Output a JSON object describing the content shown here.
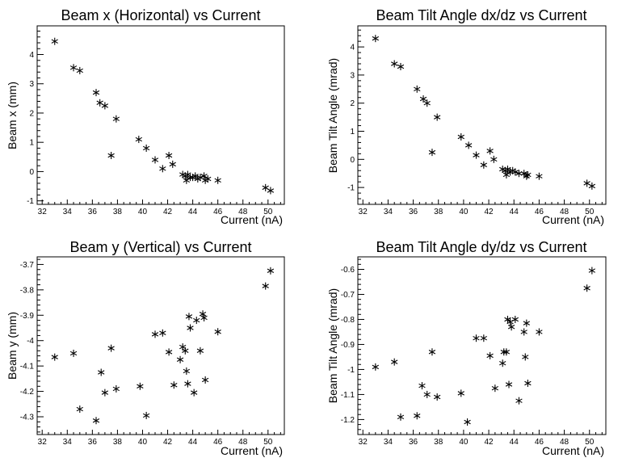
{
  "chart_data": [
    {
      "type": "scatter",
      "title": "Beam x (Horizontal) vs Current",
      "xlabel": "Current (nA)",
      "ylabel": "Beam x (mm)",
      "xlim": [
        31.6,
        51.3
      ],
      "ylim": [
        -1.12,
        4.98
      ],
      "xticks": [
        32,
        34,
        36,
        38,
        40,
        42,
        44,
        46,
        48,
        50
      ],
      "yticks": [
        -1,
        0,
        1,
        2,
        3,
        4
      ],
      "x": [
        33.0,
        34.5,
        35.0,
        36.3,
        36.6,
        37.0,
        37.5,
        37.9,
        39.7,
        40.3,
        41.0,
        41.6,
        42.1,
        42.4,
        43.2,
        43.4,
        43.5,
        43.6,
        43.8,
        44.0,
        44.2,
        44.4,
        44.6,
        44.9,
        45.0,
        45.2,
        46.0,
        49.8,
        50.2
      ],
      "y": [
        4.45,
        3.55,
        3.45,
        2.7,
        2.35,
        2.25,
        0.55,
        1.8,
        1.1,
        0.8,
        0.4,
        0.1,
        0.55,
        0.25,
        -0.1,
        -0.15,
        -0.3,
        -0.1,
        -0.2,
        -0.2,
        -0.15,
        -0.25,
        -0.2,
        -0.15,
        -0.3,
        -0.25,
        -0.3,
        -0.55,
        -0.65
      ]
    },
    {
      "type": "scatter",
      "title": "Beam Tilt Angle dx/dz vs Current",
      "xlabel": "Current (nA)",
      "ylabel": "Beam Tilt Angle (mrad)",
      "xlim": [
        31.6,
        51.3
      ],
      "ylim": [
        -1.6,
        4.75
      ],
      "xticks": [
        32,
        34,
        36,
        38,
        40,
        42,
        44,
        46,
        48,
        50
      ],
      "yticks": [
        -1,
        0,
        1,
        2,
        3,
        4
      ],
      "x": [
        33.0,
        34.5,
        35.0,
        36.3,
        36.8,
        37.1,
        37.5,
        37.9,
        39.8,
        40.4,
        41.0,
        41.6,
        42.1,
        42.4,
        43.1,
        43.3,
        43.4,
        43.5,
        43.7,
        43.9,
        44.1,
        44.4,
        44.8,
        45.0,
        45.1,
        46.0,
        49.8,
        50.2
      ],
      "y": [
        4.3,
        3.4,
        3.3,
        2.5,
        2.15,
        2.0,
        0.25,
        1.5,
        0.8,
        0.5,
        0.15,
        -0.2,
        0.3,
        0.0,
        -0.35,
        -0.4,
        -0.55,
        -0.35,
        -0.45,
        -0.4,
        -0.45,
        -0.5,
        -0.5,
        -0.6,
        -0.55,
        -0.6,
        -0.85,
        -0.95
      ]
    },
    {
      "type": "scatter",
      "title": "Beam y (Vertical) vs Current",
      "xlabel": "Current (nA)",
      "ylabel": "Beam y (mm)",
      "xlim": [
        31.6,
        51.3
      ],
      "ylim": [
        -4.37,
        -3.67
      ],
      "xticks": [
        32,
        34,
        36,
        38,
        40,
        42,
        44,
        46,
        48,
        50
      ],
      "yticks": [
        -4.3,
        -4.2,
        -4.1,
        -4.0,
        -3.9,
        -3.8,
        -3.7
      ],
      "ytick_labels": [
        "-4.3",
        "-4.2",
        "-4.1",
        "-4",
        "-3.9",
        "-3.8",
        "-3.7"
      ],
      "x": [
        33.0,
        34.5,
        35.0,
        36.3,
        36.7,
        37.0,
        37.5,
        37.9,
        39.8,
        40.3,
        41.0,
        41.6,
        42.1,
        42.5,
        43.0,
        43.2,
        43.4,
        43.5,
        43.6,
        43.7,
        43.8,
        44.1,
        44.3,
        44.6,
        44.8,
        44.9,
        45.0,
        46.0,
        49.8,
        50.2
      ],
      "y": [
        -4.065,
        -4.05,
        -4.27,
        -4.315,
        -4.125,
        -4.205,
        -4.03,
        -4.19,
        -4.18,
        -4.295,
        -3.975,
        -3.97,
        -4.045,
        -4.175,
        -4.075,
        -4.025,
        -4.04,
        -4.12,
        -4.17,
        -3.905,
        -3.95,
        -4.205,
        -3.92,
        -4.04,
        -3.895,
        -3.91,
        -4.155,
        -3.965,
        -3.785,
        -3.725
      ]
    },
    {
      "type": "scatter",
      "title": "Beam Tilt Angle dy/dz vs Current",
      "xlabel": "Current (nA)",
      "ylabel": "Beam Tilt Angle (mrad)",
      "xlim": [
        31.6,
        51.3
      ],
      "ylim": [
        -1.26,
        -0.55
      ],
      "xticks": [
        32,
        34,
        36,
        38,
        40,
        42,
        44,
        46,
        48,
        50
      ],
      "yticks": [
        -1.2,
        -1.1,
        -1.0,
        -0.9,
        -0.8,
        -0.7,
        -0.6
      ],
      "ytick_labels": [
        "-1.2",
        "-1.1",
        "-1",
        "-0.9",
        "-0.8",
        "-0.7",
        "-0.6"
      ],
      "x": [
        33.0,
        34.5,
        35.0,
        36.3,
        36.7,
        37.1,
        37.5,
        37.9,
        39.8,
        40.3,
        41.0,
        41.6,
        42.1,
        42.5,
        43.1,
        43.2,
        43.4,
        43.5,
        43.6,
        43.7,
        43.8,
        44.1,
        44.4,
        44.8,
        44.9,
        45.0,
        45.1,
        46.0,
        49.8,
        50.2
      ],
      "y": [
        -0.99,
        -0.97,
        -1.19,
        -1.185,
        -1.065,
        -1.1,
        -0.93,
        -1.11,
        -1.095,
        -1.21,
        -0.875,
        -0.875,
        -0.945,
        -1.075,
        -0.975,
        -0.93,
        -0.93,
        -0.8,
        -1.06,
        -0.81,
        -0.83,
        -0.8,
        -1.125,
        -0.85,
        -0.95,
        -0.815,
        -1.055,
        -0.85,
        -0.675,
        -0.605
      ]
    }
  ]
}
